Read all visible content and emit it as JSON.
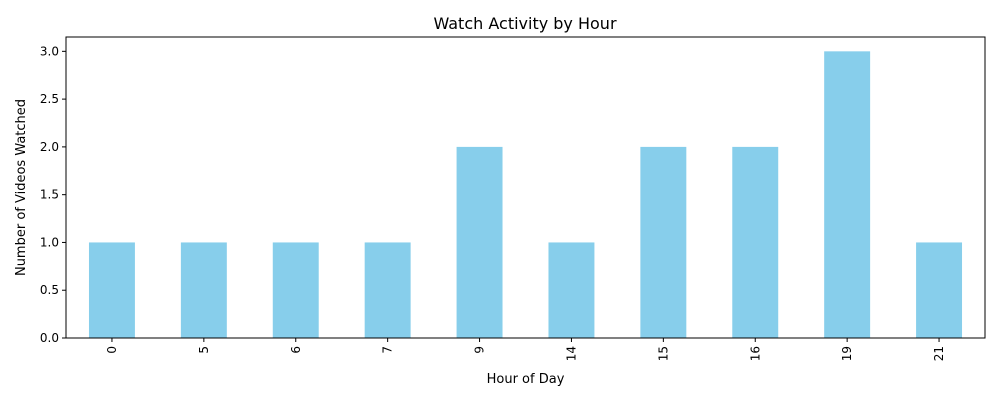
{
  "chart_data": {
    "type": "bar",
    "title": "Watch Activity by Hour",
    "xlabel": "Hour of Day",
    "ylabel": "Number of Videos Watched",
    "categories": [
      "0",
      "5",
      "6",
      "7",
      "9",
      "14",
      "15",
      "16",
      "19",
      "21"
    ],
    "values": [
      1,
      1,
      1,
      1,
      2,
      1,
      2,
      2,
      3,
      1
    ],
    "ylim": [
      0,
      3.15
    ],
    "yticks": [
      "0.0",
      "0.5",
      "1.0",
      "1.5",
      "2.0",
      "2.5",
      "3.0"
    ],
    "bar_color": "#87ceeb",
    "grid": false,
    "legend": "none"
  }
}
